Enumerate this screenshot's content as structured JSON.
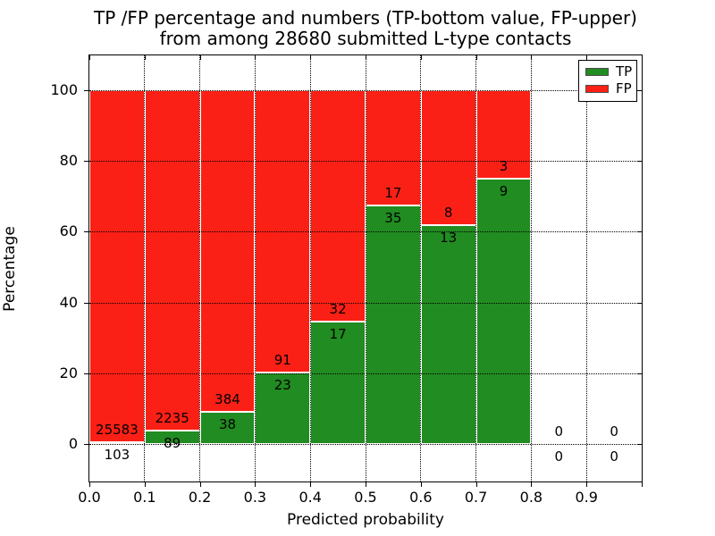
{
  "title": {
    "line1": "TP /FP percentage and numbers (TP-bottom value, FP-upper)",
    "line2": "from among 28680 submitted L-type contacts"
  },
  "chart_data": {
    "type": "bar",
    "subtype": "stacked-percentage-histogram",
    "title": "TP /FP percentage and numbers (TP-bottom value, FP-upper) from among 28680 submitted L-type contacts",
    "xlabel": "Predicted probability",
    "ylabel": "Percentage",
    "total_submitted_contacts": 28680,
    "bin_width": 0.1,
    "categories": [
      "0.0-0.1",
      "0.1-0.2",
      "0.2-0.3",
      "0.3-0.4",
      "0.4-0.5",
      "0.5-0.6",
      "0.6-0.7",
      "0.7-0.8",
      "0.8-0.9",
      "0.9-1.0"
    ],
    "bin_starts": [
      0.0,
      0.1,
      0.2,
      0.3,
      0.4,
      0.5,
      0.6,
      0.7,
      0.8,
      0.9
    ],
    "series": [
      {
        "name": "TP",
        "color": "#218c21",
        "values": [
          103,
          89,
          38,
          23,
          17,
          35,
          13,
          9,
          0,
          0
        ]
      },
      {
        "name": "FP",
        "color": "#fb2015",
        "values": [
          25583,
          2235,
          384,
          91,
          32,
          17,
          8,
          3,
          0,
          0
        ]
      }
    ],
    "bars_normalized_to_100_percent": true,
    "tp_percent_per_bin": [
      0.4,
      3.83,
      9.0,
      20.18,
      34.69,
      67.31,
      61.9,
      75.0,
      0,
      0
    ],
    "xlim": [
      0.0,
      1.0
    ],
    "ylim": [
      -10.6,
      109.8
    ],
    "x_tick_labels": [
      "0.0",
      "0.1",
      "0.2",
      "0.3",
      "0.4",
      "0.5",
      "0.6",
      "0.7",
      "0.8",
      "0.9"
    ],
    "y_ticks": [
      0,
      20,
      40,
      60,
      80,
      100
    ],
    "grid": true,
    "grid_style": "dotted",
    "legend": {
      "position": "upper right",
      "entries": [
        {
          "label": "TP",
          "color": "#218c21"
        },
        {
          "label": "FP",
          "color": "#fb2015"
        }
      ]
    },
    "annotation_note": "FP count printed just above each TP/FP boundary, TP count just below it"
  }
}
